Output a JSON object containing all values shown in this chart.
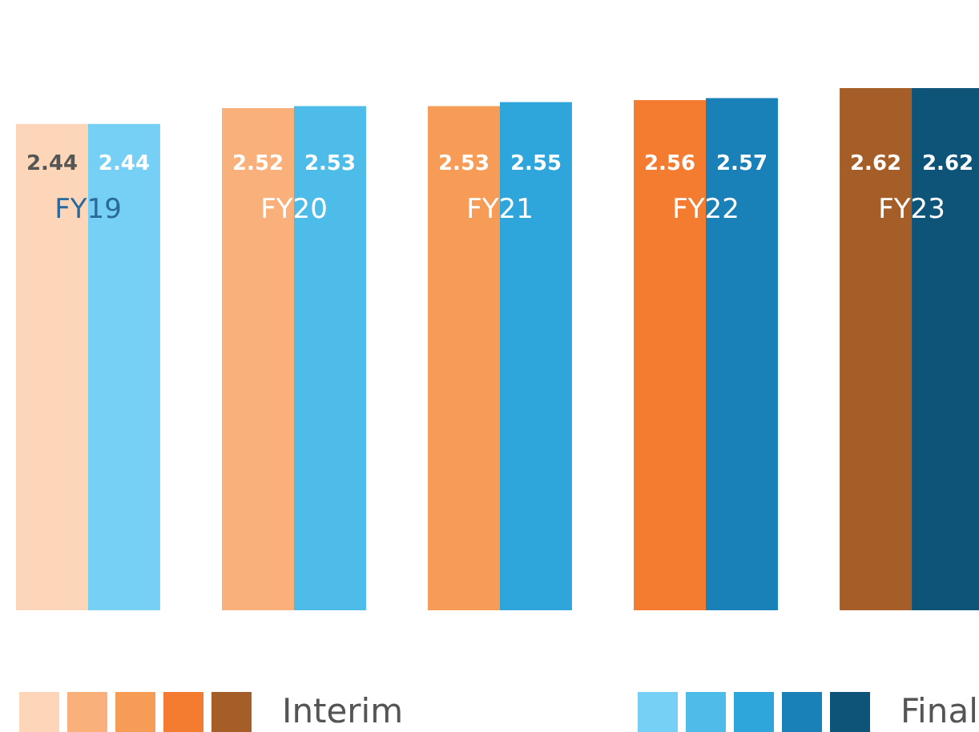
{
  "chart_data": {
    "type": "bar",
    "categories": [
      "FY19",
      "FY20",
      "FY21",
      "FY22",
      "FY23"
    ],
    "series": [
      {
        "name": "Interim",
        "colors": [
          "#fdd5b9",
          "#f9b07a",
          "#f69c56",
          "#f47c30",
          "#a65e28"
        ],
        "values": [
          2.44,
          2.52,
          2.53,
          2.56,
          2.62
        ]
      },
      {
        "name": "Final",
        "colors": [
          "#76cff5",
          "#4dbce9",
          "#2ea6dc",
          "#1980b8",
          "#0e5479"
        ],
        "values": [
          2.44,
          2.53,
          2.55,
          2.57,
          2.62
        ]
      }
    ],
    "data_labels": true,
    "legend": "bottom"
  }
}
